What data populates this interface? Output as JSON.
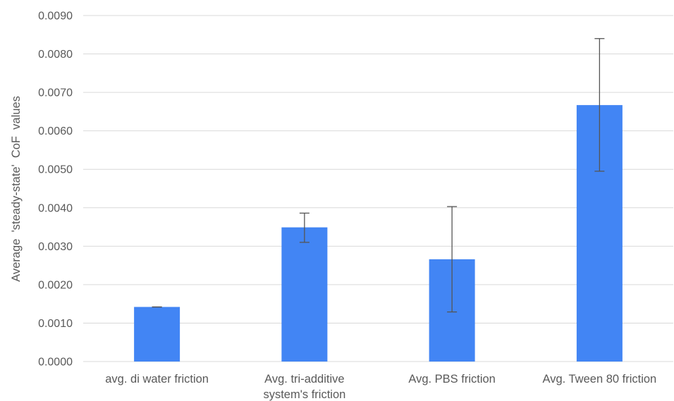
{
  "chart_data": {
    "type": "bar",
    "title": "",
    "xlabel": "",
    "ylabel": "Average  'steady-state'  CoF  values",
    "ylim": [
      0,
      0.009
    ],
    "y_ticks": [
      "0.0000",
      "0.0010",
      "0.0020",
      "0.0030",
      "0.0040",
      "0.0050",
      "0.0060",
      "0.0070",
      "0.0080",
      "0.0090"
    ],
    "categories": [
      [
        "avg. di water friction"
      ],
      [
        "Avg. tri-additive",
        "system's friction"
      ],
      [
        "Avg. PBS friction"
      ],
      [
        "Avg. Tween 80 friction"
      ]
    ],
    "series": [
      {
        "values": [
          0.00142,
          0.00349,
          0.00266,
          0.00667
        ],
        "error": [
          [
            0.00142,
            0.00142
          ],
          [
            0.0031,
            0.00386
          ],
          [
            0.00129,
            0.00403
          ],
          [
            0.00495,
            0.0084
          ]
        ],
        "color": "#4285f4"
      }
    ],
    "grid": true,
    "legend": "none"
  }
}
